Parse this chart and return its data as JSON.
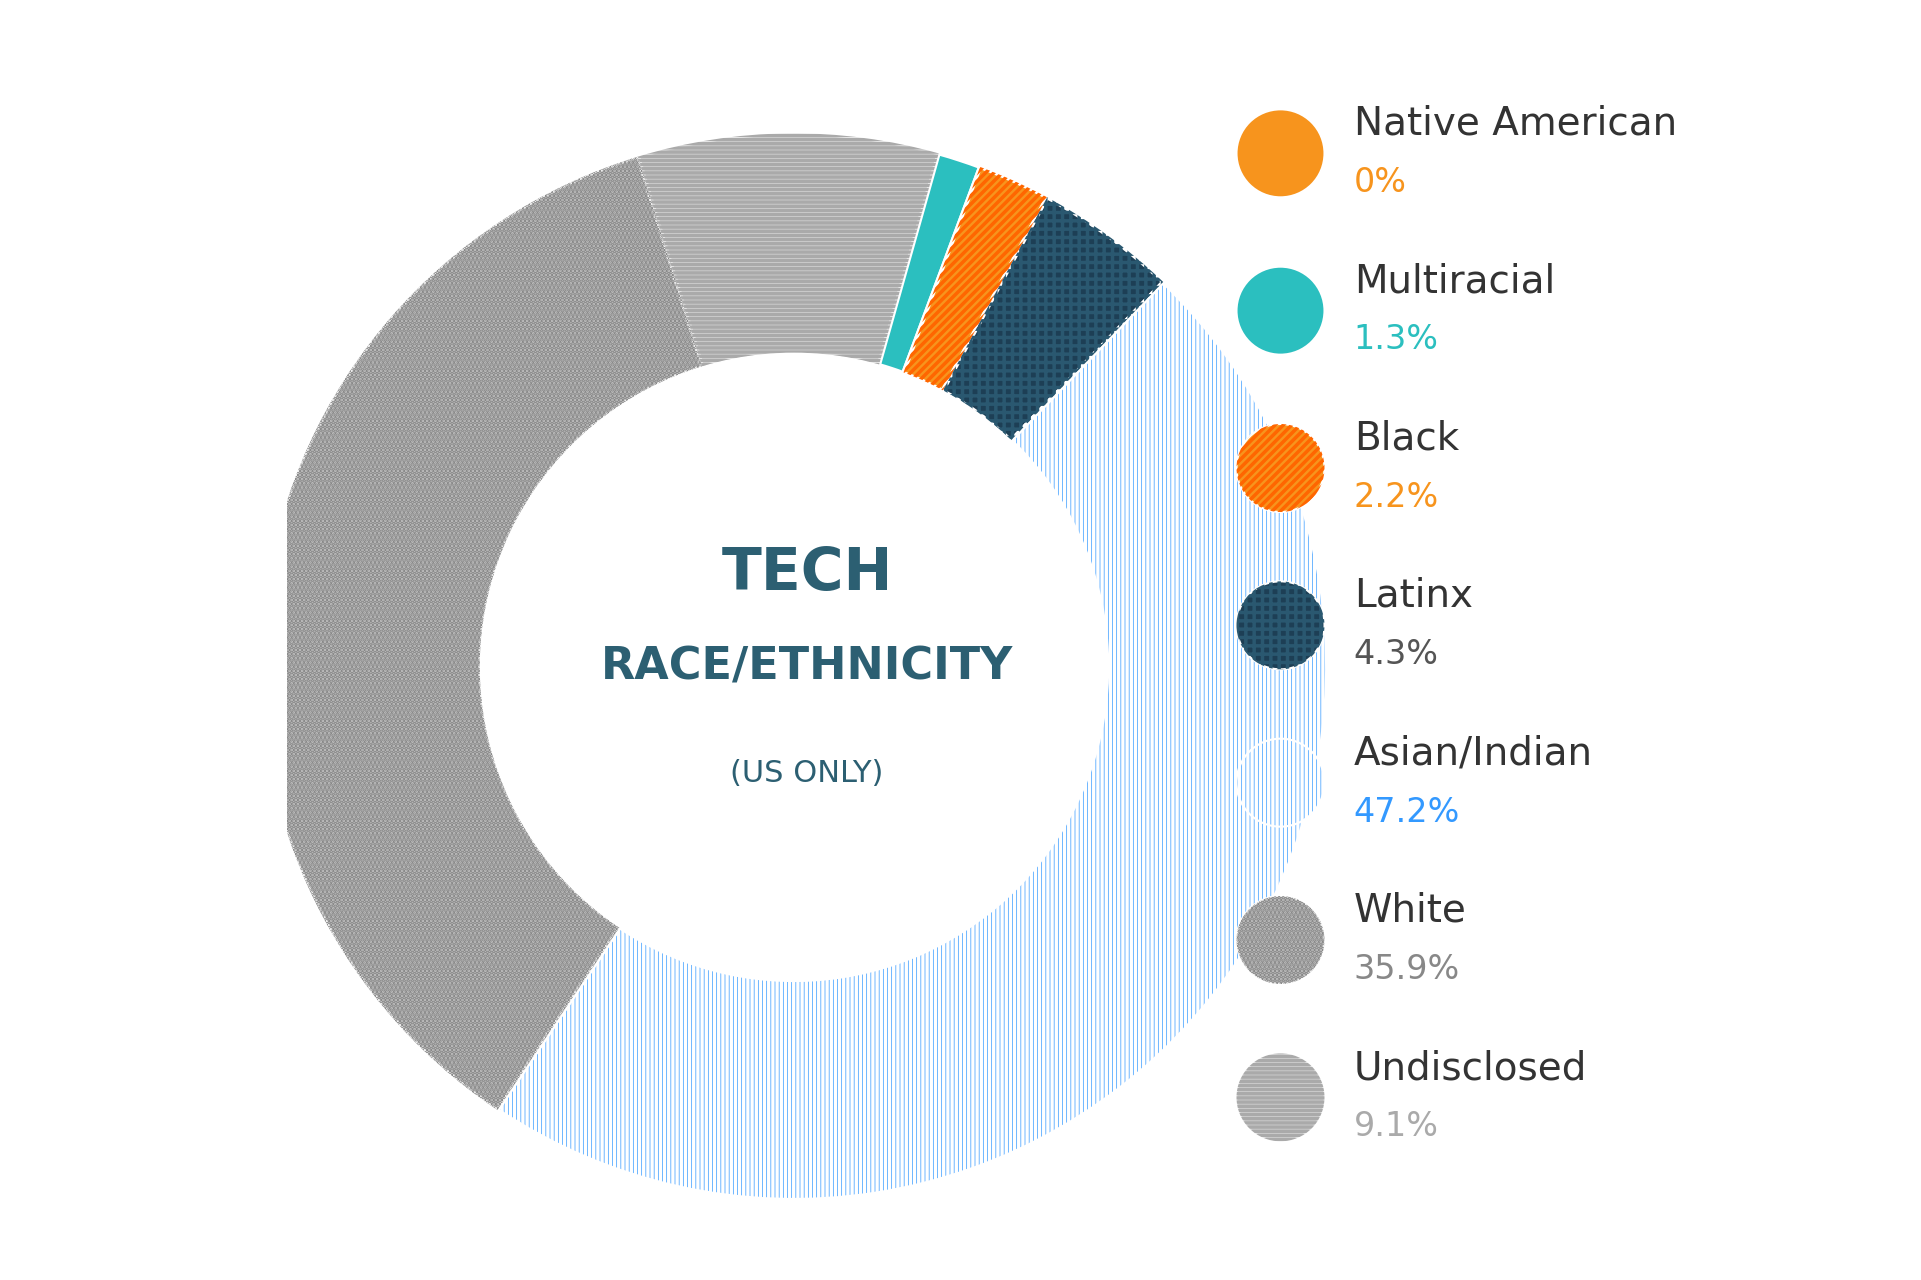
{
  "title_line1": "TECH",
  "title_line2": "RACE/ETHNICITY",
  "title_line3": "(US ONLY)",
  "categories": [
    "Native American",
    "Multiracial",
    "Black",
    "Latinx",
    "Asian/Indian",
    "White",
    "Undisclosed"
  ],
  "values": [
    0.0,
    1.3,
    2.2,
    4.3,
    47.2,
    35.9,
    9.1
  ],
  "display_values": [
    "0%",
    "1.3%",
    "2.2%",
    "4.3%",
    "47.2%",
    "35.9%",
    "9.1%"
  ],
  "background_color": "#FFFFFF",
  "center_text_color": "#2C5F72",
  "slice_colors": [
    "#F7941D",
    "#2BBFBF",
    "#F7941D",
    "#1D3F55",
    "#3399FF",
    "#BBBBBB",
    "#CCCCCC"
  ],
  "slice_hatch": [
    "====",
    "~~~~",
    "////",
    "xxxx",
    "||||",
    "....",
    "----"
  ],
  "slice_hatch_fc": [
    "#F7941D",
    "#2BBFBF",
    "#F7941D",
    "#1D3F55",
    "#3399FF",
    "#BBBBBB",
    "#CCCCCC"
  ],
  "slice_hatch_ec": [
    "#FFFFFF",
    "#FFFFFF",
    "#FFFFFF",
    "#2A5870",
    "#FFFFFF",
    "#999999",
    "#AAAAAA"
  ],
  "legend_name_color": "#333333",
  "val_text_colors": [
    "#F7941D",
    "#2BBFBF",
    "#F7941D",
    "#555555",
    "#3399FF",
    "#999999",
    "#AAAAAA"
  ],
  "latinx_color": "#555555"
}
